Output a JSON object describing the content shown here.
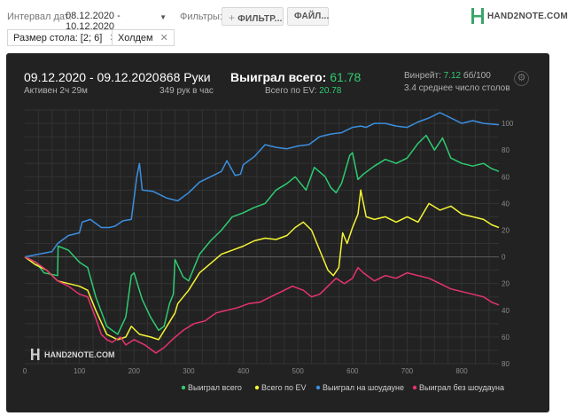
{
  "toolbar": {
    "interval_label": "Интервал дат:",
    "interval_value": "08.12.2020 - 10.12.2020",
    "filters_label": "Фильтры:",
    "filter_button": "ФИЛЬТР...",
    "file_button": "ФАЙЛ...",
    "logo_text": "HAND2NOTE.COM"
  },
  "chips": [
    {
      "label": "Размер стола: [2; 6]"
    },
    {
      "label": "Холдем"
    }
  ],
  "summary": {
    "date_range": "09.12.2020 - 09.12.2020",
    "active": "Активен 2ч 29м",
    "hands": "868 Руки",
    "hands_rate": "349 рук в час",
    "won_label": "Выиграл всего:",
    "won_value": "61.78",
    "ev_label": "Всего по EV:",
    "ev_value": "20.78",
    "winrate_label": "Винрейт:",
    "winrate_value": "7.12",
    "winrate_unit": "бб/100",
    "tables": "3.4 среднее число столов"
  },
  "watermark": "HAND2NOTE.COM",
  "chart_data": {
    "type": "line",
    "xlim": [
      0,
      868
    ],
    "ylim": [
      -80,
      110
    ],
    "x_ticks": [
      0,
      100,
      200,
      300,
      400,
      500,
      600,
      700,
      800
    ],
    "y_ticks": [
      100,
      80,
      60,
      40,
      20,
      0,
      -20,
      -40,
      -60,
      -80
    ],
    "y_tick_labels": [
      "100",
      "80",
      "60",
      "40",
      "20",
      "0",
      "20",
      "40",
      "60",
      "80"
    ],
    "grid": true,
    "legend_position": "bottom-right",
    "series": [
      {
        "name": "Выиграл всего",
        "color": "#2ecc71",
        "points": [
          [
            0,
            0
          ],
          [
            20,
            -4
          ],
          [
            35,
            -12
          ],
          [
            60,
            -14
          ],
          [
            61,
            8
          ],
          [
            80,
            5
          ],
          [
            100,
            -4
          ],
          [
            115,
            -8
          ],
          [
            130,
            -30
          ],
          [
            150,
            -52
          ],
          [
            170,
            -58
          ],
          [
            185,
            -45
          ],
          [
            195,
            -14
          ],
          [
            200,
            -12
          ],
          [
            215,
            -32
          ],
          [
            230,
            -45
          ],
          [
            245,
            -55
          ],
          [
            255,
            -52
          ],
          [
            265,
            -35
          ],
          [
            272,
            -28
          ],
          [
            275,
            -2
          ],
          [
            290,
            -15
          ],
          [
            300,
            -18
          ],
          [
            320,
            2
          ],
          [
            340,
            12
          ],
          [
            360,
            20
          ],
          [
            380,
            30
          ],
          [
            400,
            33
          ],
          [
            420,
            37
          ],
          [
            440,
            40
          ],
          [
            460,
            50
          ],
          [
            480,
            55
          ],
          [
            495,
            60
          ],
          [
            515,
            50
          ],
          [
            530,
            67
          ],
          [
            550,
            60
          ],
          [
            560,
            52
          ],
          [
            570,
            48
          ],
          [
            580,
            55
          ],
          [
            595,
            76
          ],
          [
            600,
            78
          ],
          [
            610,
            58
          ],
          [
            620,
            62
          ],
          [
            640,
            68
          ],
          [
            660,
            73
          ],
          [
            680,
            70
          ],
          [
            700,
            74
          ],
          [
            720,
            85
          ],
          [
            735,
            91
          ],
          [
            750,
            80
          ],
          [
            765,
            89
          ],
          [
            780,
            74
          ],
          [
            800,
            70
          ],
          [
            820,
            68
          ],
          [
            840,
            70
          ],
          [
            855,
            66
          ],
          [
            868,
            64
          ]
        ]
      },
      {
        "name": "Всего по EV",
        "color": "#f5f534",
        "points": [
          [
            0,
            0
          ],
          [
            20,
            -6
          ],
          [
            40,
            -10
          ],
          [
            60,
            -18
          ],
          [
            80,
            -20
          ],
          [
            100,
            -22
          ],
          [
            115,
            -25
          ],
          [
            130,
            -40
          ],
          [
            150,
            -58
          ],
          [
            170,
            -62
          ],
          [
            185,
            -60
          ],
          [
            195,
            -52
          ],
          [
            210,
            -58
          ],
          [
            230,
            -60
          ],
          [
            245,
            -62
          ],
          [
            260,
            -52
          ],
          [
            275,
            -42
          ],
          [
            280,
            -35
          ],
          [
            300,
            -25
          ],
          [
            320,
            -12
          ],
          [
            340,
            -5
          ],
          [
            360,
            2
          ],
          [
            380,
            5
          ],
          [
            400,
            8
          ],
          [
            420,
            12
          ],
          [
            440,
            14
          ],
          [
            460,
            13
          ],
          [
            480,
            16
          ],
          [
            495,
            22
          ],
          [
            510,
            26
          ],
          [
            525,
            20
          ],
          [
            540,
            5
          ],
          [
            555,
            -10
          ],
          [
            565,
            -14
          ],
          [
            575,
            -8
          ],
          [
            582,
            18
          ],
          [
            590,
            10
          ],
          [
            600,
            22
          ],
          [
            610,
            32
          ],
          [
            615,
            50
          ],
          [
            625,
            30
          ],
          [
            640,
            28
          ],
          [
            660,
            30
          ],
          [
            680,
            26
          ],
          [
            700,
            30
          ],
          [
            720,
            26
          ],
          [
            740,
            40
          ],
          [
            760,
            35
          ],
          [
            780,
            38
          ],
          [
            800,
            32
          ],
          [
            820,
            30
          ],
          [
            840,
            28
          ],
          [
            855,
            24
          ],
          [
            868,
            22
          ]
        ]
      },
      {
        "name": "Выиграл на шоудауне",
        "color": "#3b8fe0",
        "points": [
          [
            0,
            0
          ],
          [
            50,
            4
          ],
          [
            60,
            10
          ],
          [
            80,
            16
          ],
          [
            100,
            18
          ],
          [
            105,
            26
          ],
          [
            120,
            28
          ],
          [
            140,
            22
          ],
          [
            155,
            22
          ],
          [
            165,
            23
          ],
          [
            180,
            27
          ],
          [
            195,
            28
          ],
          [
            205,
            60
          ],
          [
            210,
            70
          ],
          [
            215,
            50
          ],
          [
            235,
            49
          ],
          [
            260,
            44
          ],
          [
            280,
            42
          ],
          [
            300,
            48
          ],
          [
            320,
            56
          ],
          [
            340,
            60
          ],
          [
            360,
            64
          ],
          [
            370,
            72
          ],
          [
            385,
            61
          ],
          [
            395,
            62
          ],
          [
            400,
            69
          ],
          [
            420,
            75
          ],
          [
            440,
            84
          ],
          [
            460,
            82
          ],
          [
            480,
            81
          ],
          [
            500,
            83
          ],
          [
            520,
            84
          ],
          [
            540,
            90
          ],
          [
            560,
            92
          ],
          [
            580,
            93
          ],
          [
            600,
            97
          ],
          [
            615,
            98
          ],
          [
            625,
            97
          ],
          [
            640,
            100
          ],
          [
            660,
            100
          ],
          [
            680,
            98
          ],
          [
            700,
            97
          ],
          [
            720,
            101
          ],
          [
            740,
            104
          ],
          [
            760,
            108
          ],
          [
            780,
            104
          ],
          [
            800,
            100
          ],
          [
            820,
            102
          ],
          [
            840,
            100
          ],
          [
            868,
            99
          ]
        ]
      },
      {
        "name": "Выиграл без шоудауна",
        "color": "#e8336e",
        "points": [
          [
            0,
            0
          ],
          [
            20,
            -4
          ],
          [
            40,
            -10
          ],
          [
            60,
            -18
          ],
          [
            80,
            -22
          ],
          [
            100,
            -28
          ],
          [
            115,
            -30
          ],
          [
            130,
            -46
          ],
          [
            140,
            -58
          ],
          [
            150,
            -62
          ],
          [
            160,
            -64
          ],
          [
            175,
            -60
          ],
          [
            185,
            -66
          ],
          [
            200,
            -62
          ],
          [
            220,
            -66
          ],
          [
            240,
            -72
          ],
          [
            255,
            -68
          ],
          [
            270,
            -62
          ],
          [
            290,
            -55
          ],
          [
            310,
            -50
          ],
          [
            330,
            -48
          ],
          [
            350,
            -42
          ],
          [
            370,
            -40
          ],
          [
            390,
            -38
          ],
          [
            410,
            -35
          ],
          [
            430,
            -34
          ],
          [
            450,
            -30
          ],
          [
            470,
            -26
          ],
          [
            490,
            -22
          ],
          [
            510,
            -25
          ],
          [
            525,
            -30
          ],
          [
            540,
            -28
          ],
          [
            555,
            -22
          ],
          [
            570,
            -16
          ],
          [
            585,
            -20
          ],
          [
            600,
            -16
          ],
          [
            610,
            -8
          ],
          [
            620,
            -12
          ],
          [
            640,
            -18
          ],
          [
            660,
            -14
          ],
          [
            680,
            -16
          ],
          [
            700,
            -12
          ],
          [
            720,
            -14
          ],
          [
            740,
            -16
          ],
          [
            760,
            -20
          ],
          [
            780,
            -24
          ],
          [
            800,
            -26
          ],
          [
            820,
            -28
          ],
          [
            840,
            -30
          ],
          [
            855,
            -34
          ],
          [
            868,
            -36
          ]
        ]
      }
    ]
  }
}
